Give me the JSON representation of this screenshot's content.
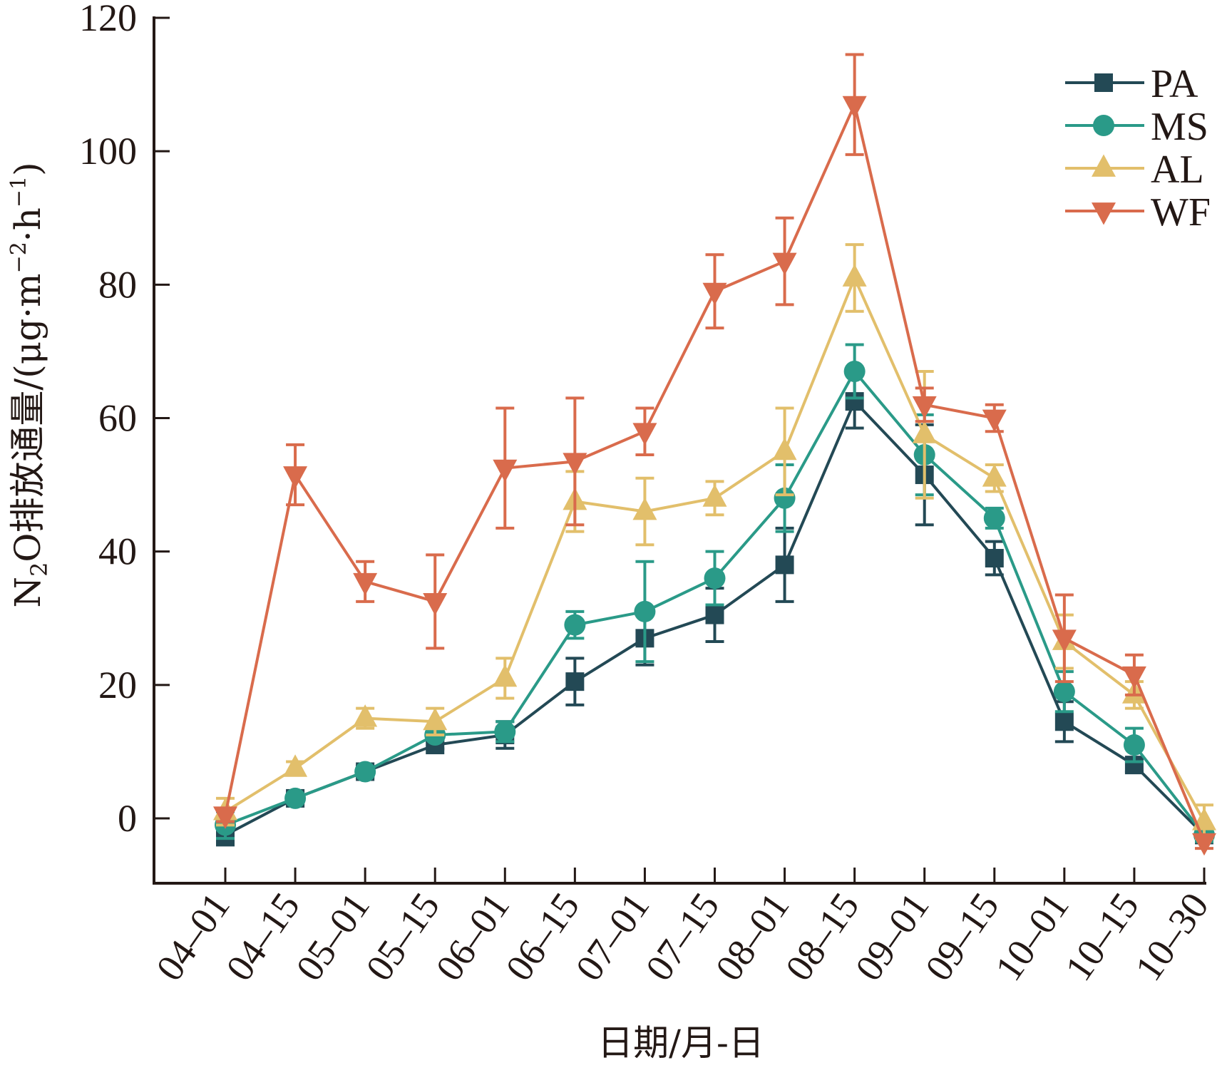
{
  "chart_data": {
    "type": "line",
    "title": "",
    "xlabel": "日期/月-日",
    "ylabel": "N₂O排放通量/(μg·m⁻²·h⁻¹)",
    "ylabel_parts": {
      "prefix": "N",
      "sub": "2",
      "mid": "O排放通量/(μg·m",
      "sup1": "−2",
      "mid2": "·h",
      "sup2": "−1",
      "suffix": ")"
    },
    "categories": [
      "04–01",
      "04–15",
      "05–01",
      "05–15",
      "06–01",
      "06–15",
      "07–01",
      "07–15",
      "08–01",
      "08–15",
      "09–01",
      "09–15",
      "10–01",
      "10–15",
      "10–30"
    ],
    "ylim": [
      -10,
      120
    ],
    "yticks": [
      0,
      20,
      40,
      60,
      80,
      100,
      120
    ],
    "grid": false,
    "legend_position": "top-right",
    "series": [
      {
        "name": "PA",
        "marker": "square",
        "color": "#234955",
        "values": [
          -2.5,
          3,
          7,
          11,
          12.5,
          20.5,
          27,
          30.5,
          38,
          62.5,
          51.5,
          39,
          14.5,
          8,
          -2.5
        ],
        "errors": [
          1.5,
          0.7,
          0.8,
          0.6,
          2,
          3.5,
          4,
          4,
          5.5,
          4,
          7.5,
          2.5,
          3,
          1,
          1
        ]
      },
      {
        "name": "MS",
        "marker": "circle",
        "color": "#2a9a88",
        "values": [
          -1,
          3,
          7,
          12.5,
          13,
          29,
          31,
          36,
          48,
          67,
          54.5,
          45,
          19,
          11,
          -2.5
        ],
        "errors": [
          2,
          0.5,
          0.5,
          0.5,
          1.5,
          2,
          7.5,
          4,
          5,
          4,
          6,
          1.5,
          3,
          2.5,
          1
        ]
      },
      {
        "name": "AL",
        "marker": "triangle-up",
        "color": "#e2bf6b",
        "values": [
          1,
          7.5,
          15,
          14.5,
          21,
          47.5,
          46,
          48,
          55,
          81,
          57.5,
          51,
          26.5,
          18.5,
          -0.5
        ],
        "errors": [
          2,
          1,
          1.5,
          2,
          3,
          4.5,
          5,
          2.5,
          6.5,
          5,
          9.5,
          2,
          4,
          2,
          2.5
        ]
      },
      {
        "name": "WF",
        "marker": "triangle-down",
        "color": "#d96b4c",
        "values": [
          0.5,
          51.5,
          35.5,
          32.5,
          52.5,
          53.5,
          58,
          79,
          83.5,
          107,
          62,
          60,
          27,
          21.5,
          -3.5
        ],
        "errors": [
          1,
          4.5,
          3,
          7,
          9,
          9.5,
          3.5,
          5.5,
          6.5,
          7.5,
          2.5,
          2,
          6.5,
          3,
          1
        ]
      }
    ]
  }
}
